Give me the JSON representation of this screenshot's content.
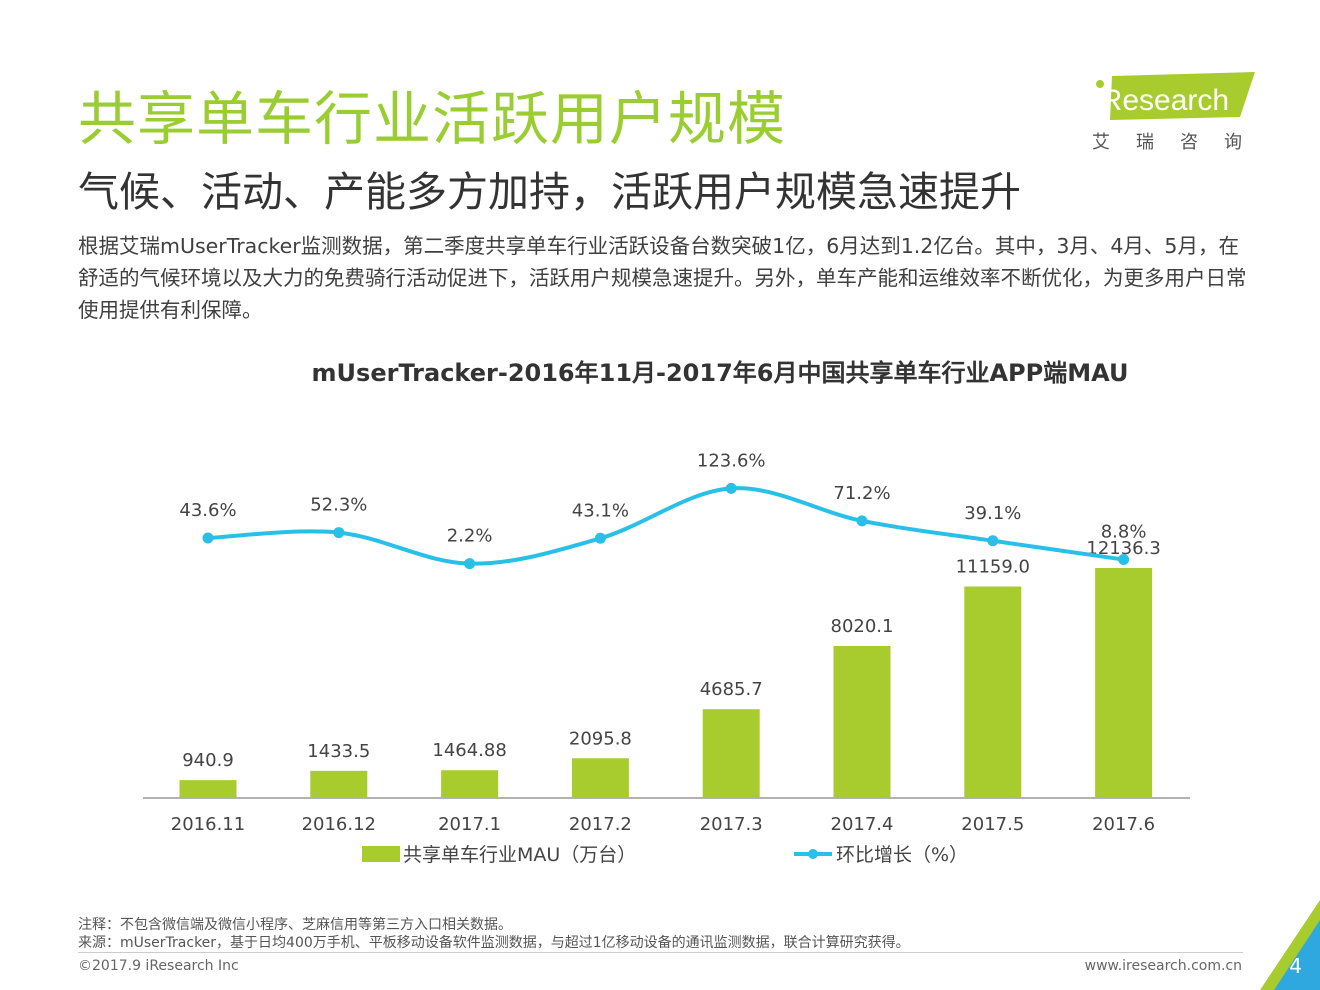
{
  "header": {
    "title": "共享单车行业活跃用户规模",
    "subtitle": "气候、活动、产能多方加持，活跃用户规模急速提升",
    "description": "根据艾瑞mUserTracker监测数据，第二季度共享单车行业活跃设备台数突破1亿，6月达到1.2亿台。其中，3月、4月、5月，在舒适的气候环境以及大力的免费骑行活动促进下，活跃用户规模急速提升。另外，单车产能和运维效率不断优化，为更多用户日常使用提供有利保障。"
  },
  "logo": {
    "brand": "iResearch",
    "cn": "艾瑞咨询"
  },
  "chart_data": {
    "type": "bar",
    "title": "mUserTracker-2016年11月-2017年6月中国共享单车行业APP端MAU",
    "categories": [
      "2016.11",
      "2016.12",
      "2017.1",
      "2017.2",
      "2017.3",
      "2017.4",
      "2017.5",
      "2017.6"
    ],
    "series": [
      {
        "name": "共享单车行业MAU（万台）",
        "type": "bar",
        "values": [
          940.9,
          1433.5,
          1464.88,
          2095.8,
          4685.7,
          8020.1,
          11159.0,
          12136.3
        ],
        "labels": [
          "940.9",
          "1433.5",
          "1464.88",
          "2095.8",
          "4685.7",
          "8020.1",
          "11159.0",
          "12136.3"
        ],
        "color": "#A8CC2E"
      },
      {
        "name": "环比增长（%）",
        "type": "line",
        "values": [
          43.6,
          52.3,
          2.2,
          43.1,
          123.6,
          71.2,
          39.1,
          8.8
        ],
        "labels": [
          "43.6%",
          "52.3%",
          "2.2%",
          "43.1%",
          "123.6%",
          "71.2%",
          "39.1%",
          "8.8%"
        ],
        "color": "#29C0E8"
      }
    ],
    "legend_position": "bottom",
    "grid": false
  },
  "footer": {
    "note": "注释：不包含微信端及微信小程序、芝麻信用等第三方入口相关数据。",
    "source": "来源：mUserTracker，基于日均400万手机、平板移动设备软件监测数据，与超过1亿移动设备的通讯监测数据，联合计算研究获得。",
    "copyright": "©2017.9 iResearch Inc",
    "website": "www.iresearch.com.cn",
    "page_number": "4"
  },
  "colors": {
    "accent_green": "#9ACD32",
    "bar_green": "#A8CC2E",
    "line_blue": "#29C0E8",
    "corner_blue": "#2FA8E0"
  }
}
